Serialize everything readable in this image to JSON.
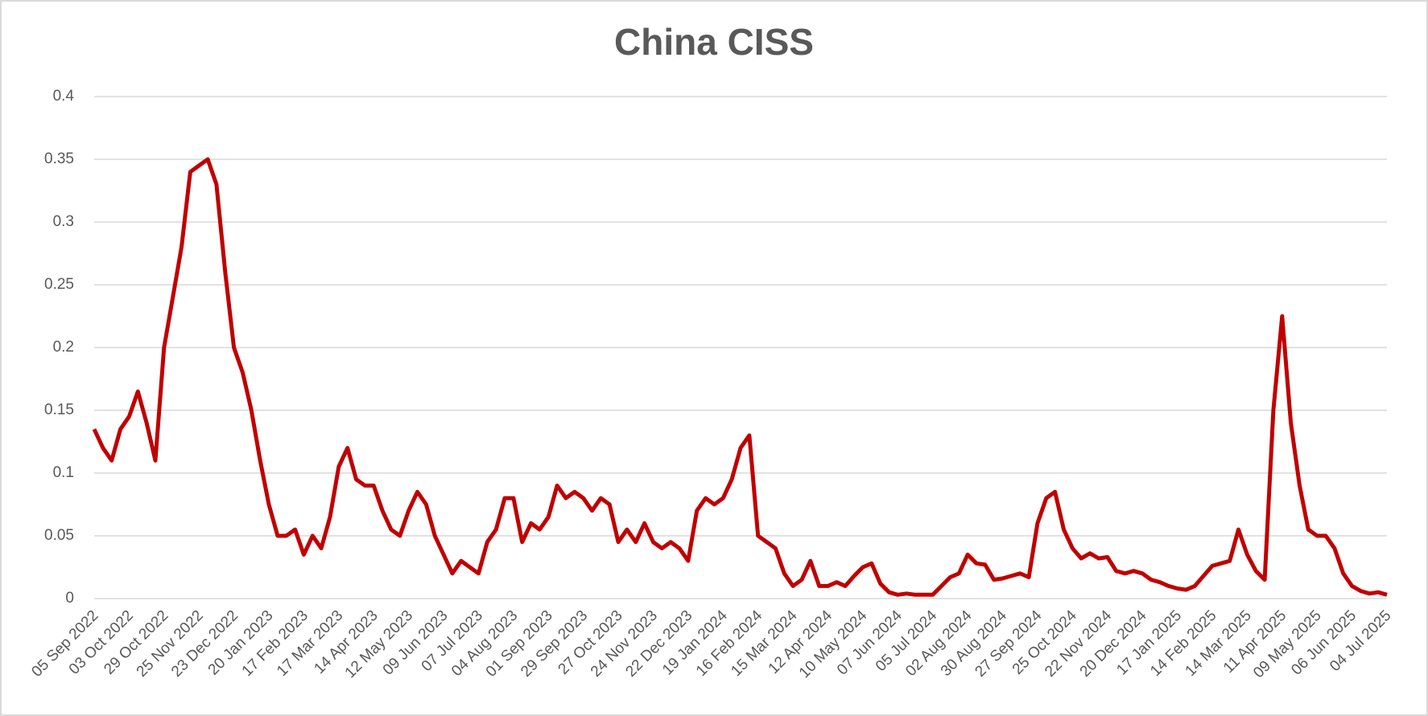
{
  "chart_data": {
    "type": "line",
    "title": "China  CISS",
    "categories": [
      "05 Sep 2022",
      null,
      null,
      null,
      "03 Oct 2022",
      null,
      null,
      null,
      "29 Oct 2022",
      null,
      null,
      null,
      "25 Nov 2022",
      null,
      null,
      null,
      "23 Dec 2022",
      null,
      null,
      null,
      "20 Jan 2023",
      null,
      null,
      null,
      "17 Feb 2023",
      null,
      null,
      null,
      "17 Mar 2023",
      null,
      null,
      null,
      "14 Apr 2023",
      null,
      null,
      null,
      "12 May 2023",
      null,
      null,
      null,
      "09 Jun 2023",
      null,
      null,
      null,
      "07 Jul 2023",
      null,
      null,
      null,
      "04 Aug 2023",
      null,
      null,
      null,
      "01 Sep 2023",
      null,
      null,
      null,
      "29 Sep 2023",
      null,
      null,
      null,
      "27 Oct 2023",
      null,
      null,
      null,
      "24 Nov 2023",
      null,
      null,
      null,
      "22 Dec 2023",
      null,
      null,
      null,
      "19 Jan 2024",
      null,
      null,
      null,
      "16 Feb 2024",
      null,
      null,
      null,
      "15 Mar 2024",
      null,
      null,
      null,
      "12 Apr 2024",
      null,
      null,
      null,
      "10 May 2024",
      null,
      null,
      null,
      "07 Jun 2024",
      null,
      null,
      null,
      "05 Jul 2024",
      null,
      null,
      null,
      "02 Aug 2024",
      null,
      null,
      null,
      "30 Aug 2024",
      null,
      null,
      null,
      "27 Sep 2024",
      null,
      null,
      null,
      "25 Oct 2024",
      null,
      null,
      null,
      "22 Nov 2024",
      null,
      null,
      null,
      "20 Dec 2024",
      null,
      null,
      null,
      "17 Jan 2025",
      null,
      null,
      null,
      "14 Feb 2025",
      null,
      null,
      null,
      "14 Mar 2025",
      null,
      null,
      null,
      "11 Apr 2025",
      null,
      null,
      null,
      "09 May 2025",
      null,
      null,
      null,
      "06 Jun 2025",
      null,
      null,
      null,
      "04 Jul 2025"
    ],
    "series": [
      {
        "name": "China CISS",
        "color": "#c00000",
        "values": [
          0.135,
          0.12,
          0.11,
          0.135,
          0.145,
          0.165,
          0.14,
          0.11,
          0.2,
          0.24,
          0.28,
          0.34,
          0.345,
          0.35,
          0.33,
          0.26,
          0.2,
          0.18,
          0.15,
          0.11,
          0.075,
          0.05,
          0.05,
          0.055,
          0.035,
          0.05,
          0.04,
          0.065,
          0.105,
          0.12,
          0.095,
          0.09,
          0.09,
          0.07,
          0.055,
          0.05,
          0.07,
          0.085,
          0.075,
          0.05,
          0.035,
          0.02,
          0.03,
          0.025,
          0.02,
          0.045,
          0.055,
          0.08,
          0.08,
          0.045,
          0.06,
          0.055,
          0.065,
          0.09,
          0.08,
          0.085,
          0.08,
          0.07,
          0.08,
          0.075,
          0.045,
          0.055,
          0.045,
          0.06,
          0.045,
          0.04,
          0.045,
          0.04,
          0.03,
          0.07,
          0.08,
          0.075,
          0.08,
          0.095,
          0.12,
          0.13,
          0.05,
          0.045,
          0.04,
          0.02,
          0.01,
          0.015,
          0.03,
          0.01,
          0.01,
          0.013,
          0.01,
          0.018,
          0.025,
          0.028,
          0.012,
          0.005,
          0.003,
          0.004,
          0.003,
          0.003,
          0.003,
          0.01,
          0.017,
          0.02,
          0.035,
          0.028,
          0.027,
          0.015,
          0.016,
          0.018,
          0.02,
          0.017,
          0.06,
          0.08,
          0.085,
          0.055,
          0.04,
          0.032,
          0.036,
          0.032,
          0.033,
          0.022,
          0.02,
          0.022,
          0.02,
          0.015,
          0.013,
          0.01,
          0.008,
          0.007,
          0.01,
          0.018,
          0.026,
          0.028,
          0.03,
          0.055,
          0.035,
          0.022,
          0.015,
          0.15,
          0.225,
          0.14,
          0.09,
          0.055,
          0.05,
          0.05,
          0.04,
          0.02,
          0.01,
          0.006,
          0.004,
          0.005,
          0.003
        ]
      }
    ],
    "ylim": [
      0,
      0.4
    ],
    "yticks": [
      0,
      0.05,
      0.1,
      0.15,
      0.2,
      0.25,
      0.3,
      0.35,
      0.4
    ],
    "grid": true
  }
}
